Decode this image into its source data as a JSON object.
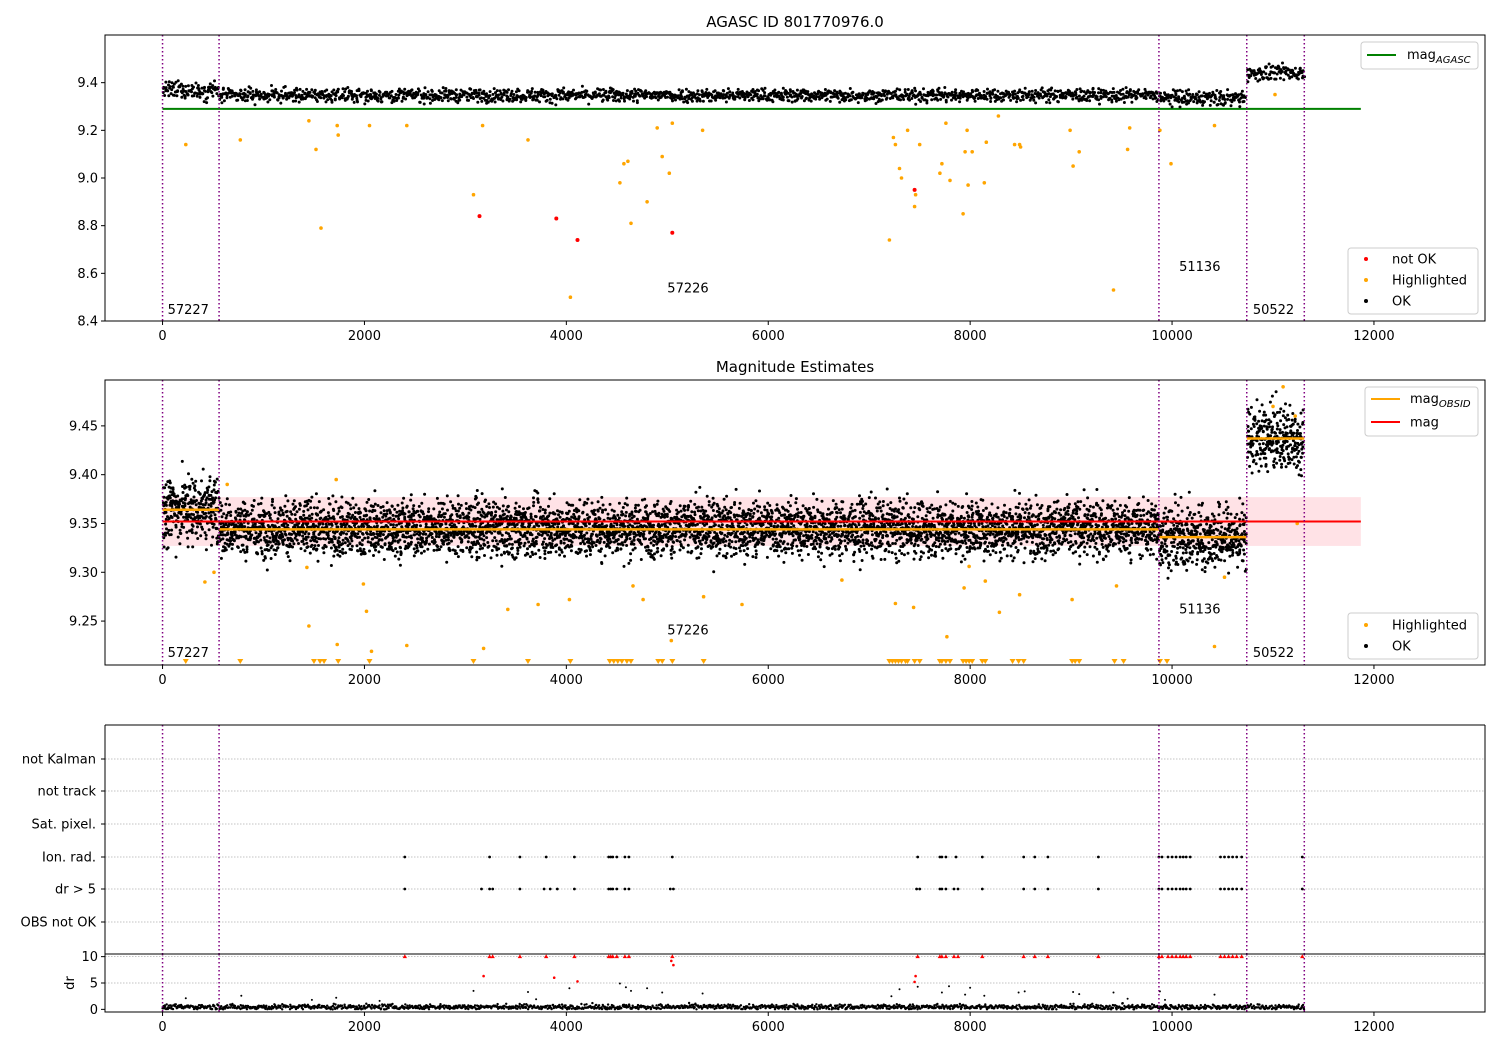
{
  "chart_data": [
    {
      "type": "scatter",
      "title": "AGASC ID 801770976.0",
      "xlim": [
        -570,
        13100
      ],
      "ylim": [
        8.4,
        9.6
      ],
      "x_ticks": [
        0,
        2000,
        4000,
        6000,
        8000,
        10000,
        12000
      ],
      "y_ticks": [
        8.4,
        8.6,
        8.8,
        9.0,
        9.2,
        9.4
      ],
      "x_tick_labels": [
        "0",
        "2000",
        "4000",
        "6000",
        "8000",
        "10000",
        "12000"
      ],
      "y_tick_labels": [
        "8.4",
        "8.6",
        "8.8",
        "9.0",
        "9.2",
        "9.4"
      ],
      "obsid_boundaries": [
        0,
        560,
        9870,
        10740,
        11310
      ],
      "obsid_labels": [
        {
          "text": "57227",
          "x": 50,
          "y": 8.43
        },
        {
          "text": "57226",
          "x": 5000,
          "y": 8.52
        },
        {
          "text": "51136",
          "x": 10070,
          "y": 8.61
        },
        {
          "text": "50522",
          "x": 10800,
          "y": 8.43
        }
      ],
      "lines": [
        {
          "name": "mag$_{AGASC}$",
          "label_main": "mag",
          "label_sub": "AGASC",
          "y": 9.29,
          "x_range": [
            0,
            11870
          ],
          "color": "#008000"
        }
      ],
      "ok_segments": [
        {
          "x0": 0,
          "x1": 560,
          "center": 9.368,
          "spread": 0.018
        },
        {
          "x0": 560,
          "x1": 9870,
          "center": 9.347,
          "spread": 0.014
        },
        {
          "x0": 9870,
          "x1": 10740,
          "center": 9.335,
          "spread": 0.016
        },
        {
          "x0": 10740,
          "x1": 11310,
          "center": 9.44,
          "spread": 0.016
        }
      ],
      "highlighted_points": [
        {
          "x": 230,
          "y": 9.14
        },
        {
          "x": 770,
          "y": 9.16
        },
        {
          "x": 1450,
          "y": 9.24
        },
        {
          "x": 1520,
          "y": 9.12
        },
        {
          "x": 1570,
          "y": 8.79
        },
        {
          "x": 1730,
          "y": 9.22
        },
        {
          "x": 1740,
          "y": 9.18
        },
        {
          "x": 2050,
          "y": 9.22
        },
        {
          "x": 2420,
          "y": 9.22
        },
        {
          "x": 3080,
          "y": 8.93
        },
        {
          "x": 3170,
          "y": 9.22
        },
        {
          "x": 3620,
          "y": 9.16
        },
        {
          "x": 4040,
          "y": 8.5
        },
        {
          "x": 4530,
          "y": 8.98
        },
        {
          "x": 4570,
          "y": 9.06
        },
        {
          "x": 4610,
          "y": 9.07
        },
        {
          "x": 4640,
          "y": 8.81
        },
        {
          "x": 4800,
          "y": 8.9
        },
        {
          "x": 4900,
          "y": 9.21
        },
        {
          "x": 4950,
          "y": 9.09
        },
        {
          "x": 5020,
          "y": 9.02
        },
        {
          "x": 5050,
          "y": 9.23
        },
        {
          "x": 5350,
          "y": 9.2
        },
        {
          "x": 7200,
          "y": 8.74
        },
        {
          "x": 7240,
          "y": 9.17
        },
        {
          "x": 7260,
          "y": 9.14
        },
        {
          "x": 7300,
          "y": 9.04
        },
        {
          "x": 7320,
          "y": 9.0
        },
        {
          "x": 7380,
          "y": 9.2
        },
        {
          "x": 7450,
          "y": 8.88
        },
        {
          "x": 7460,
          "y": 8.93
        },
        {
          "x": 7500,
          "y": 9.14
        },
        {
          "x": 7700,
          "y": 9.02
        },
        {
          "x": 7720,
          "y": 9.06
        },
        {
          "x": 7760,
          "y": 9.23
        },
        {
          "x": 7800,
          "y": 8.99
        },
        {
          "x": 7930,
          "y": 8.85
        },
        {
          "x": 7950,
          "y": 9.11
        },
        {
          "x": 7970,
          "y": 9.2
        },
        {
          "x": 7980,
          "y": 8.97
        },
        {
          "x": 8020,
          "y": 9.11
        },
        {
          "x": 8140,
          "y": 8.98
        },
        {
          "x": 8160,
          "y": 9.15
        },
        {
          "x": 8280,
          "y": 9.26
        },
        {
          "x": 8440,
          "y": 9.14
        },
        {
          "x": 8490,
          "y": 9.14
        },
        {
          "x": 8500,
          "y": 9.13
        },
        {
          "x": 8990,
          "y": 9.2
        },
        {
          "x": 9020,
          "y": 9.05
        },
        {
          "x": 9080,
          "y": 9.11
        },
        {
          "x": 9420,
          "y": 8.53
        },
        {
          "x": 9560,
          "y": 9.12
        },
        {
          "x": 9580,
          "y": 9.21
        },
        {
          "x": 9880,
          "y": 9.2
        },
        {
          "x": 9990,
          "y": 9.06
        },
        {
          "x": 10420,
          "y": 9.22
        },
        {
          "x": 11020,
          "y": 9.35
        }
      ],
      "not_ok_points": [
        {
          "x": 3140,
          "y": 8.84
        },
        {
          "x": 3900,
          "y": 8.83
        },
        {
          "x": 4110,
          "y": 8.74
        },
        {
          "x": 5050,
          "y": 8.77
        },
        {
          "x": 7450,
          "y": 8.95
        }
      ],
      "legends": [
        {
          "position": "upper right",
          "entries": [
            {
              "label_main": "mag",
              "label_sub": "AGASC",
              "color": "#008000",
              "kind": "line"
            }
          ]
        },
        {
          "position": "lower right",
          "entries": [
            {
              "label": "not OK",
              "color": "#ff0000",
              "kind": "dot"
            },
            {
              "label": "Highlighted",
              "color": "#ffa500",
              "kind": "dot"
            },
            {
              "label": "OK",
              "color": "#000000",
              "kind": "dot"
            }
          ]
        }
      ]
    },
    {
      "type": "scatter",
      "title": "Magnitude Estimates",
      "xlim": [
        -570,
        13100
      ],
      "ylim": [
        9.205,
        9.497
      ],
      "x_ticks": [
        0,
        2000,
        4000,
        6000,
        8000,
        10000,
        12000
      ],
      "y_ticks": [
        9.25,
        9.3,
        9.35,
        9.4,
        9.45
      ],
      "x_tick_labels": [
        "0",
        "2000",
        "4000",
        "6000",
        "8000",
        "10000",
        "12000"
      ],
      "y_tick_labels": [
        "9.25",
        "9.30",
        "9.35",
        "9.40",
        "9.45"
      ],
      "obsid_boundaries": [
        0,
        560,
        9870,
        10740,
        11310
      ],
      "obsid_labels": [
        {
          "text": "57227",
          "x": 50,
          "y": 9.213
        },
        {
          "text": "57226",
          "x": 5000,
          "y": 9.236
        },
        {
          "text": "51136",
          "x": 10070,
          "y": 9.258
        },
        {
          "text": "50522",
          "x": 10800,
          "y": 9.213
        }
      ],
      "mag": {
        "y": 9.352,
        "band": [
          9.327,
          9.377
        ],
        "x_range": [
          0,
          11870
        ],
        "color": "#ff0000"
      },
      "obsid_mags": [
        {
          "x0": 0,
          "x1": 560,
          "y": 9.364
        },
        {
          "x0": 560,
          "x1": 9870,
          "y": 9.344
        },
        {
          "x0": 9870,
          "x1": 10740,
          "y": 9.336
        },
        {
          "x0": 10740,
          "x1": 11310,
          "y": 9.437
        }
      ],
      "ok_segments": [
        {
          "x0": 0,
          "x1": 560,
          "center": 9.365,
          "spread": 0.018
        },
        {
          "x0": 560,
          "x1": 9870,
          "center": 9.345,
          "spread": 0.014
        },
        {
          "x0": 9870,
          "x1": 10740,
          "center": 9.336,
          "spread": 0.016
        },
        {
          "x0": 10740,
          "x1": 11310,
          "center": 9.437,
          "spread": 0.016
        }
      ],
      "highlighted_points": [
        {
          "x": 420,
          "y": 9.29
        },
        {
          "x": 510,
          "y": 9.3
        },
        {
          "x": 640,
          "y": 9.39
        },
        {
          "x": 1430,
          "y": 9.305
        },
        {
          "x": 1450,
          "y": 9.245
        },
        {
          "x": 1720,
          "y": 9.395
        },
        {
          "x": 1730,
          "y": 9.226
        },
        {
          "x": 1990,
          "y": 9.288
        },
        {
          "x": 2020,
          "y": 9.26
        },
        {
          "x": 2070,
          "y": 9.219
        },
        {
          "x": 2420,
          "y": 9.225
        },
        {
          "x": 3180,
          "y": 9.222
        },
        {
          "x": 3420,
          "y": 9.262
        },
        {
          "x": 3720,
          "y": 9.267
        },
        {
          "x": 4030,
          "y": 9.272
        },
        {
          "x": 4660,
          "y": 9.286
        },
        {
          "x": 4760,
          "y": 9.272
        },
        {
          "x": 5040,
          "y": 9.23
        },
        {
          "x": 5360,
          "y": 9.275
        },
        {
          "x": 5740,
          "y": 9.267
        },
        {
          "x": 6730,
          "y": 9.292
        },
        {
          "x": 7260,
          "y": 9.268
        },
        {
          "x": 7440,
          "y": 9.264
        },
        {
          "x": 7770,
          "y": 9.234
        },
        {
          "x": 7940,
          "y": 9.284
        },
        {
          "x": 7990,
          "y": 9.306
        },
        {
          "x": 8150,
          "y": 9.291
        },
        {
          "x": 8290,
          "y": 9.259
        },
        {
          "x": 8490,
          "y": 9.277
        },
        {
          "x": 9010,
          "y": 9.272
        },
        {
          "x": 9450,
          "y": 9.286
        },
        {
          "x": 10420,
          "y": 9.224
        },
        {
          "x": 10520,
          "y": 9.295
        },
        {
          "x": 11000,
          "y": 9.47
        },
        {
          "x": 11100,
          "y": 9.49
        },
        {
          "x": 11220,
          "y": 9.46
        },
        {
          "x": 11240,
          "y": 9.35
        }
      ],
      "limit_markers_x": [
        230,
        770,
        1500,
        1560,
        1600,
        1740,
        2050,
        3080,
        3620,
        4040,
        4430,
        4470,
        4510,
        4550,
        4600,
        4640,
        4910,
        4950,
        5050,
        5360,
        7200,
        7230,
        7260,
        7290,
        7320,
        7360,
        7380,
        7450,
        7500,
        7700,
        7720,
        7760,
        7800,
        7930,
        7960,
        7990,
        8020,
        8120,
        8150,
        8420,
        8480,
        8530,
        9010,
        9040,
        9080,
        9430,
        9520,
        9880,
        9950
      ],
      "legends": [
        {
          "position": "upper right",
          "entries": [
            {
              "label_main": "mag",
              "label_sub": "OBSID",
              "color": "#ffa500",
              "kind": "line"
            },
            {
              "label": "mag",
              "color": "#ff0000",
              "kind": "line"
            }
          ]
        },
        {
          "position": "lower right",
          "entries": [
            {
              "label": "Highlighted",
              "color": "#ffa500",
              "kind": "dot"
            },
            {
              "label": "OK",
              "color": "#000000",
              "kind": "dot"
            }
          ]
        }
      ]
    },
    {
      "type": "scatter",
      "title": "",
      "xlim": [
        -570,
        13100
      ],
      "categories": [
        "not Kalman",
        "not track",
        "Sat. pixel.",
        "Ion. rad.",
        "dr > 5",
        "OBS not OK"
      ],
      "obsid_boundaries": [
        0,
        560,
        9870,
        10740,
        11310
      ],
      "flags": {
        "Ion. rad.": [
          2400,
          3240,
          3540,
          3800,
          4080,
          4420,
          4440,
          4460,
          4500,
          4580,
          4620,
          5050,
          7480,
          7700,
          7720,
          7760,
          7860,
          8120,
          8530,
          8640,
          8770,
          9270,
          9870,
          9900,
          9960,
          10000,
          10040,
          10080,
          10110,
          10140,
          10180,
          10480,
          10520,
          10560,
          10600,
          10640,
          10690,
          11290
        ],
        "dr > 5": [
          2400,
          3160,
          3240,
          3270,
          3540,
          3780,
          3840,
          3910,
          4080,
          4420,
          4440,
          4460,
          4500,
          4580,
          4620,
          5030,
          5060,
          7470,
          7500,
          7700,
          7720,
          7760,
          7840,
          7880,
          8120,
          8530,
          8640,
          8770,
          9270,
          9870,
          9900,
          9960,
          10000,
          10040,
          10080,
          10110,
          10140,
          10180,
          10480,
          10520,
          10560,
          10600,
          10640,
          10690,
          11290
        ]
      }
    },
    {
      "type": "scatter",
      "title": "",
      "ylabel": "dr",
      "xlim": [
        -570,
        13100
      ],
      "ylim": [
        -0.5,
        10.5
      ],
      "y_ticks": [
        0,
        5,
        10
      ],
      "y_tick_labels": [
        "0",
        "5",
        "10"
      ],
      "x_ticks": [
        0,
        2000,
        4000,
        6000,
        8000,
        10000,
        12000
      ],
      "x_tick_labels": [
        "0",
        "2000",
        "4000",
        "6000",
        "8000",
        "10000",
        "12000"
      ],
      "obsid_boundaries": [
        0,
        560,
        9870,
        10740,
        11310
      ],
      "base": {
        "x0": 0,
        "x1": 11310,
        "center": 0.45,
        "spread": 0.25
      },
      "outliers": [
        {
          "x": 230,
          "y": 2.1
        },
        {
          "x": 780,
          "y": 2.6
        },
        {
          "x": 1480,
          "y": 1.8
        },
        {
          "x": 1720,
          "y": 2.2
        },
        {
          "x": 2150,
          "y": 1.6
        },
        {
          "x": 3080,
          "y": 3.5
        },
        {
          "x": 3180,
          "y": 6.3
        },
        {
          "x": 3620,
          "y": 3.3
        },
        {
          "x": 3700,
          "y": 1.9
        },
        {
          "x": 3880,
          "y": 6.0
        },
        {
          "x": 4030,
          "y": 4.0
        },
        {
          "x": 4110,
          "y": 5.3
        },
        {
          "x": 4530,
          "y": 4.9
        },
        {
          "x": 4590,
          "y": 4.2
        },
        {
          "x": 4640,
          "y": 3.5
        },
        {
          "x": 4800,
          "y": 4.0
        },
        {
          "x": 4950,
          "y": 3.2
        },
        {
          "x": 5040,
          "y": 9.2
        },
        {
          "x": 5060,
          "y": 8.4
        },
        {
          "x": 5350,
          "y": 3.0
        },
        {
          "x": 7220,
          "y": 2.5
        },
        {
          "x": 7300,
          "y": 3.8
        },
        {
          "x": 7450,
          "y": 5.2
        },
        {
          "x": 7460,
          "y": 6.3
        },
        {
          "x": 7480,
          "y": 4.3
        },
        {
          "x": 7720,
          "y": 3.2
        },
        {
          "x": 7790,
          "y": 4.4
        },
        {
          "x": 7950,
          "y": 2.8
        },
        {
          "x": 8000,
          "y": 4.1
        },
        {
          "x": 8140,
          "y": 2.6
        },
        {
          "x": 8480,
          "y": 3.2
        },
        {
          "x": 8540,
          "y": 3.4
        },
        {
          "x": 9020,
          "y": 3.3
        },
        {
          "x": 9080,
          "y": 2.9
        },
        {
          "x": 9420,
          "y": 3.2
        },
        {
          "x": 9560,
          "y": 2.0
        },
        {
          "x": 9880,
          "y": 3.4
        },
        {
          "x": 9930,
          "y": 1.8
        },
        {
          "x": 10420,
          "y": 2.8
        }
      ],
      "capped": [
        2400,
        3240,
        3270,
        3540,
        3800,
        4080,
        4420,
        4440,
        4460,
        4500,
        4580,
        4620,
        5050,
        7480,
        7700,
        7720,
        7760,
        7840,
        7880,
        8120,
        8530,
        8640,
        8770,
        9270,
        9870,
        9900,
        9960,
        10000,
        10040,
        10080,
        10110,
        10140,
        10180,
        10480,
        10520,
        10560,
        10600,
        10640,
        10690,
        11290
      ]
    }
  ],
  "colors": {
    "ok": "#000000",
    "highlighted": "#ffa500",
    "not_ok": "#ff0000",
    "boundary": "#800080",
    "agasc_line": "#008000",
    "band": "#ffb6c1",
    "grid": "#b0b0b0"
  }
}
